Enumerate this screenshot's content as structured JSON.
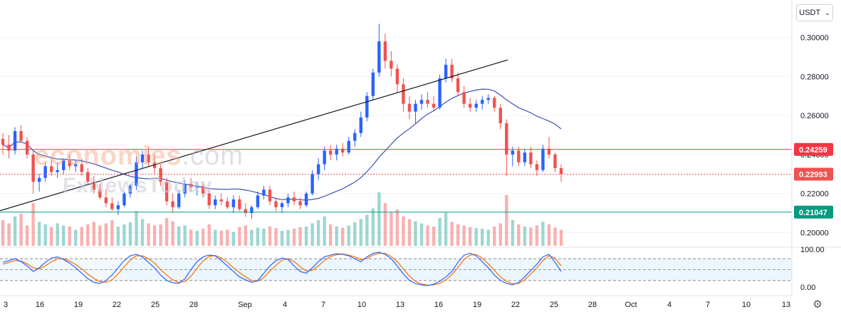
{
  "currency": {
    "label": "USDT"
  },
  "watermark": {
    "brand": "economies",
    "brand_suffix": ".com",
    "sub": "FxNewsToday"
  },
  "chart_data": {
    "type": "candlestick",
    "price_axis": {
      "ticks": [
        "0.30000",
        "0.28000",
        "0.26000",
        "0.24000",
        "0.22000",
        "0.20000"
      ],
      "ylim": [
        0.1925,
        0.3075
      ]
    },
    "date_axis": {
      "ticks": [
        "3",
        "16",
        "19",
        "22",
        "25",
        "28",
        "Sep",
        "4",
        "7",
        "10",
        "13",
        "16",
        "19",
        "22",
        "25",
        "28",
        "Oct",
        "4",
        "7",
        "10",
        "13"
      ]
    },
    "levels": [
      {
        "name": "resistance",
        "value": 0.24259,
        "label": "0.24259",
        "color": "#f23645"
      },
      {
        "name": "last-price",
        "value": 0.22993,
        "label": "0.22993",
        "color": "#ef5350"
      },
      {
        "name": "support",
        "value": 0.21047,
        "label": "0.21047",
        "color": "#089981"
      }
    ],
    "trendline": {
      "from": [
        18.8,
        0.2885
      ],
      "to": [
        29.2,
        0.2112
      ]
    },
    "candles": [
      [
        0.248,
        0.251,
        0.24,
        0.245
      ],
      [
        0.245,
        0.25,
        0.238,
        0.242
      ],
      [
        0.242,
        0.254,
        0.24,
        0.252
      ],
      [
        0.252,
        0.255,
        0.246,
        0.247
      ],
      [
        0.247,
        0.249,
        0.238,
        0.24
      ],
      [
        0.24,
        0.242,
        0.22,
        0.226
      ],
      [
        0.226,
        0.23,
        0.221,
        0.228
      ],
      [
        0.228,
        0.236,
        0.226,
        0.234
      ],
      [
        0.234,
        0.238,
        0.229,
        0.231
      ],
      [
        0.231,
        0.236,
        0.228,
        0.232
      ],
      [
        0.232,
        0.238,
        0.23,
        0.237
      ],
      [
        0.237,
        0.24,
        0.232,
        0.234
      ],
      [
        0.234,
        0.237,
        0.231,
        0.235
      ],
      [
        0.235,
        0.238,
        0.229,
        0.231
      ],
      [
        0.231,
        0.233,
        0.225,
        0.226
      ],
      [
        0.226,
        0.229,
        0.22,
        0.222
      ],
      [
        0.222,
        0.225,
        0.217,
        0.218
      ],
      [
        0.218,
        0.222,
        0.213,
        0.215
      ],
      [
        0.215,
        0.218,
        0.211,
        0.212
      ],
      [
        0.212,
        0.216,
        0.209,
        0.214
      ],
      [
        0.214,
        0.221,
        0.213,
        0.22
      ],
      [
        0.22,
        0.225,
        0.218,
        0.224
      ],
      [
        0.224,
        0.239,
        0.222,
        0.236
      ],
      [
        0.236,
        0.242,
        0.233,
        0.24
      ],
      [
        0.24,
        0.244,
        0.234,
        0.236
      ],
      [
        0.236,
        0.24,
        0.23,
        0.233
      ],
      [
        0.233,
        0.235,
        0.224,
        0.226
      ],
      [
        0.226,
        0.228,
        0.214,
        0.216
      ],
      [
        0.216,
        0.22,
        0.21,
        0.213
      ],
      [
        0.213,
        0.222,
        0.212,
        0.22
      ],
      [
        0.22,
        0.227,
        0.218,
        0.225
      ],
      [
        0.225,
        0.228,
        0.221,
        0.223
      ],
      [
        0.223,
        0.226,
        0.219,
        0.224
      ],
      [
        0.224,
        0.226,
        0.218,
        0.22
      ],
      [
        0.22,
        0.222,
        0.212,
        0.214
      ],
      [
        0.214,
        0.219,
        0.212,
        0.217
      ],
      [
        0.217,
        0.22,
        0.214,
        0.216
      ],
      [
        0.216,
        0.218,
        0.212,
        0.213
      ],
      [
        0.213,
        0.219,
        0.21,
        0.217
      ],
      [
        0.217,
        0.219,
        0.211,
        0.212
      ],
      [
        0.212,
        0.215,
        0.208,
        0.21
      ],
      [
        0.21,
        0.214,
        0.207,
        0.213
      ],
      [
        0.213,
        0.221,
        0.212,
        0.219
      ],
      [
        0.219,
        0.224,
        0.217,
        0.222
      ],
      [
        0.222,
        0.224,
        0.214,
        0.216
      ],
      [
        0.216,
        0.218,
        0.211,
        0.213
      ],
      [
        0.213,
        0.216,
        0.21,
        0.215
      ],
      [
        0.215,
        0.22,
        0.213,
        0.218
      ],
      [
        0.218,
        0.221,
        0.214,
        0.216
      ],
      [
        0.216,
        0.218,
        0.212,
        0.214
      ],
      [
        0.214,
        0.221,
        0.213,
        0.22
      ],
      [
        0.22,
        0.232,
        0.219,
        0.23
      ],
      [
        0.23,
        0.238,
        0.227,
        0.235
      ],
      [
        0.235,
        0.244,
        0.232,
        0.242
      ],
      [
        0.242,
        0.245,
        0.237,
        0.24
      ],
      [
        0.24,
        0.245,
        0.237,
        0.243
      ],
      [
        0.243,
        0.246,
        0.239,
        0.241
      ],
      [
        0.241,
        0.249,
        0.24,
        0.247
      ],
      [
        0.247,
        0.253,
        0.244,
        0.251
      ],
      [
        0.251,
        0.262,
        0.249,
        0.259
      ],
      [
        0.259,
        0.272,
        0.257,
        0.27
      ],
      [
        0.27,
        0.284,
        0.268,
        0.282
      ],
      [
        0.282,
        0.307,
        0.28,
        0.298
      ],
      [
        0.298,
        0.302,
        0.284,
        0.288
      ],
      [
        0.288,
        0.293,
        0.28,
        0.284
      ],
      [
        0.284,
        0.286,
        0.272,
        0.276
      ],
      [
        0.276,
        0.279,
        0.262,
        0.266
      ],
      [
        0.266,
        0.27,
        0.258,
        0.262
      ],
      [
        0.262,
        0.268,
        0.256,
        0.266
      ],
      [
        0.266,
        0.271,
        0.263,
        0.268
      ],
      [
        0.268,
        0.272,
        0.264,
        0.266
      ],
      [
        0.266,
        0.27,
        0.262,
        0.264
      ],
      [
        0.264,
        0.281,
        0.263,
        0.279
      ],
      [
        0.279,
        0.289,
        0.277,
        0.286
      ],
      [
        0.286,
        0.289,
        0.277,
        0.279
      ],
      [
        0.279,
        0.282,
        0.27,
        0.272
      ],
      [
        0.272,
        0.275,
        0.264,
        0.266
      ],
      [
        0.266,
        0.269,
        0.262,
        0.264
      ],
      [
        0.264,
        0.268,
        0.262,
        0.266
      ],
      [
        0.266,
        0.27,
        0.263,
        0.268
      ],
      [
        0.268,
        0.271,
        0.266,
        0.269
      ],
      [
        0.269,
        0.27,
        0.262,
        0.264
      ],
      [
        0.264,
        0.266,
        0.253,
        0.256
      ],
      [
        0.256,
        0.258,
        0.229,
        0.24
      ],
      [
        0.24,
        0.244,
        0.234,
        0.242
      ],
      [
        0.242,
        0.244,
        0.234,
        0.236
      ],
      [
        0.236,
        0.243,
        0.234,
        0.241
      ],
      [
        0.241,
        0.244,
        0.233,
        0.235
      ],
      [
        0.235,
        0.237,
        0.229,
        0.232
      ],
      [
        0.232,
        0.245,
        0.231,
        0.243
      ],
      [
        0.243,
        0.249,
        0.238,
        0.24
      ],
      [
        0.24,
        0.241,
        0.231,
        0.233
      ],
      [
        0.233,
        0.235,
        0.226,
        0.23
      ]
    ],
    "volumes": [
      0.48,
      0.42,
      0.55,
      0.6,
      0.38,
      0.8,
      0.45,
      0.4,
      0.35,
      0.42,
      0.38,
      0.36,
      0.3,
      0.35,
      0.4,
      0.45,
      0.38,
      0.42,
      0.48,
      0.36,
      0.4,
      0.44,
      0.65,
      0.5,
      0.42,
      0.38,
      0.4,
      0.52,
      0.46,
      0.36,
      0.38,
      0.3,
      0.28,
      0.32,
      0.4,
      0.3,
      0.28,
      0.3,
      0.26,
      0.35,
      0.38,
      0.3,
      0.34,
      0.32,
      0.36,
      0.33,
      0.28,
      0.3,
      0.32,
      0.35,
      0.36,
      0.42,
      0.48,
      0.55,
      0.4,
      0.36,
      0.34,
      0.38,
      0.44,
      0.5,
      0.58,
      0.7,
      1.0,
      0.8,
      0.62,
      0.68,
      0.55,
      0.5,
      0.46,
      0.42,
      0.38,
      0.36,
      0.52,
      0.62,
      0.45,
      0.4,
      0.38,
      0.35,
      0.33,
      0.32,
      0.3,
      0.36,
      0.42,
      0.95,
      0.48,
      0.4,
      0.36,
      0.34,
      0.38,
      0.45,
      0.4,
      0.34,
      0.3
    ],
    "oscillator": {
      "type": "stochastic",
      "ticks": [
        "100.00",
        "0.00"
      ],
      "upper": 80,
      "lower": 20,
      "k": [
        70,
        75,
        80,
        72,
        60,
        45,
        55,
        70,
        82,
        85,
        78,
        68,
        55,
        40,
        25,
        15,
        12,
        20,
        35,
        55,
        75,
        88,
        92,
        85,
        70,
        55,
        35,
        20,
        14,
        12,
        25,
        50,
        72,
        85,
        90,
        88,
        75,
        60,
        45,
        30,
        22,
        15,
        20,
        40,
        60,
        75,
        82,
        78,
        60,
        45,
        40,
        55,
        72,
        85,
        90,
        94,
        92,
        88,
        80,
        72,
        85,
        95,
        98,
        92,
        80,
        60,
        38,
        20,
        12,
        8,
        6,
        10,
        18,
        30,
        45,
        70,
        90,
        95,
        88,
        72,
        55,
        35,
        20,
        12,
        8,
        15,
        30,
        48,
        65,
        85,
        92,
        70,
        45
      ],
      "d": [
        65,
        70,
        75,
        74,
        66,
        55,
        52,
        60,
        72,
        80,
        80,
        74,
        64,
        52,
        38,
        26,
        17,
        15,
        22,
        38,
        58,
        76,
        88,
        88,
        80,
        68,
        50,
        35,
        22,
        15,
        17,
        32,
        54,
        74,
        86,
        89,
        82,
        70,
        55,
        42,
        30,
        20,
        18,
        28,
        46,
        62,
        76,
        80,
        72,
        58,
        46,
        48,
        60,
        76,
        86,
        91,
        93,
        90,
        85,
        78,
        80,
        90,
        95,
        95,
        86,
        72,
        52,
        32,
        18,
        10,
        7,
        8,
        12,
        22,
        36,
        56,
        78,
        90,
        92,
        82,
        66,
        48,
        30,
        18,
        11,
        12,
        22,
        38,
        55,
        75,
        88,
        82,
        60
      ]
    }
  }
}
